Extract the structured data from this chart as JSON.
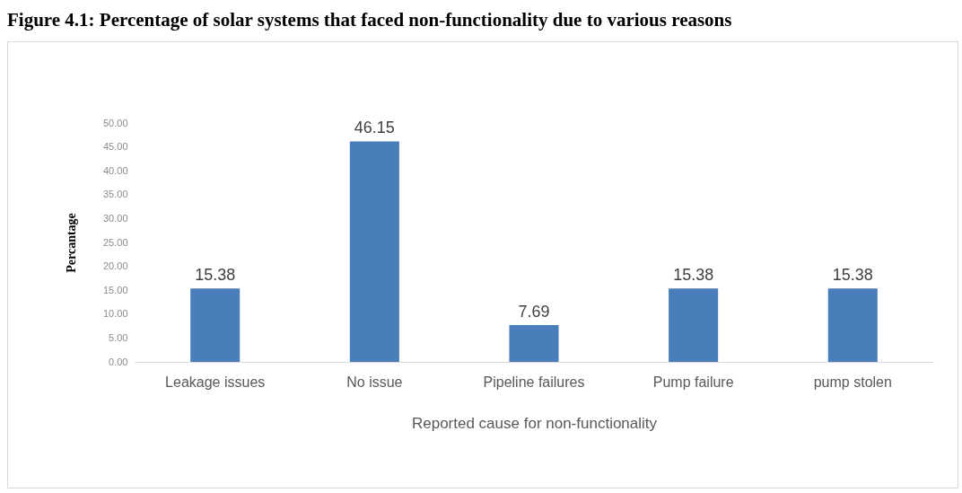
{
  "chart_data": {
    "type": "bar",
    "title": "Figure 4.1: Percentage of solar systems that faced non-functionality due to various reasons",
    "xlabel": "Reported cause for non-functionality",
    "ylabel": "Percantage",
    "categories": [
      "Leakage issues",
      "No issue",
      "Pipeline failures",
      "Pump failure",
      "pump stolen"
    ],
    "values": [
      15.38,
      46.15,
      7.69,
      15.38,
      15.38
    ],
    "color": "#4a7ebb",
    "ylim": [
      0,
      50
    ],
    "yticks": [
      {
        "value": 0,
        "label": "0.00"
      },
      {
        "value": 5,
        "label": "5.00"
      },
      {
        "value": 10,
        "label": "10.00"
      },
      {
        "value": 15,
        "label": "15.00"
      },
      {
        "value": 20,
        "label": "20.00"
      },
      {
        "value": 25,
        "label": "25.00"
      },
      {
        "value": 30,
        "label": "30.00"
      },
      {
        "value": 35,
        "label": "35.00"
      },
      {
        "value": 40,
        "label": "40.00"
      },
      {
        "value": 45,
        "label": "45.00"
      },
      {
        "value": 50,
        "label": "50.00"
      }
    ],
    "data_labels": true,
    "grid": false
  }
}
